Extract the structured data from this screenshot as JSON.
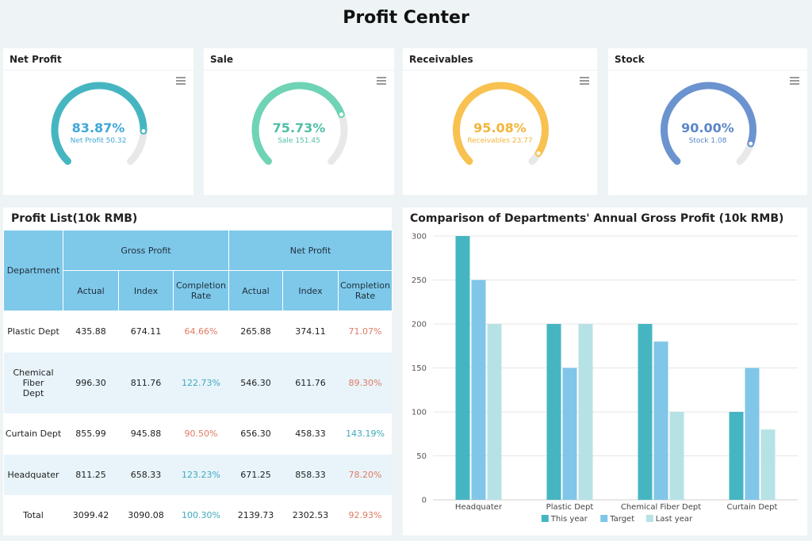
{
  "page": {
    "title": "Profit Center"
  },
  "gauges": [
    {
      "title": "Net Profit",
      "percent": 83.87,
      "percent_text": "83.87%",
      "subtitle": "Net Profit 50.32",
      "color": "#45b6c1"
    },
    {
      "title": "Sale",
      "percent": 75.73,
      "percent_text": "75.73%",
      "subtitle": "Sale 151.45",
      "color": "#6fd3b5"
    },
    {
      "title": "Receivables",
      "percent": 95.08,
      "percent_text": "95.08%",
      "subtitle": "Receivables 23.77",
      "color": "#f8c150"
    },
    {
      "title": "Stock",
      "percent": 90.0,
      "percent_text": "90.00%",
      "subtitle": "Stock 1.08",
      "color": "#6b93cf"
    }
  ],
  "gauge_track_color": "#e8e8e8",
  "profit_list": {
    "title": "Profit List(10k RMB)",
    "headers": {
      "department": "Department",
      "gross_profit": "Gross Profit",
      "net_profit": "Net Profit",
      "actual": "Actual",
      "index": "Index",
      "completion_rate": "Completion Rate"
    },
    "rows": [
      {
        "department": "Plastic Dept",
        "gp_actual": "435.88",
        "gp_index": "674.11",
        "gp_rate": "64.66%",
        "np_actual": "265.88",
        "np_index": "374.11",
        "np_rate": "71.07%"
      },
      {
        "department": "Chemical Fiber Dept",
        "gp_actual": "996.30",
        "gp_index": "811.76",
        "gp_rate": "122.73%",
        "np_actual": "546.30",
        "np_index": "611.76",
        "np_rate": "89.30%"
      },
      {
        "department": "Curtain Dept",
        "gp_actual": "855.99",
        "gp_index": "945.88",
        "gp_rate": "90.50%",
        "np_actual": "656.30",
        "np_index": "458.33",
        "np_rate": "143.19%"
      },
      {
        "department": "Headquater",
        "gp_actual": "811.25",
        "gp_index": "658.33",
        "gp_rate": "123.23%",
        "np_actual": "671.25",
        "np_index": "858.33",
        "np_rate": "78.20%"
      },
      {
        "department": "Total",
        "gp_actual": "3099.42",
        "gp_index": "3090.08",
        "gp_rate": "100.30%",
        "np_actual": "2139.73",
        "np_index": "2302.53",
        "np_rate": "92.93%"
      }
    ]
  },
  "chart_data": {
    "type": "bar",
    "title": "Comparison of Departments' Annual Gross Profit (10k RMB)",
    "categories": [
      "Headquater",
      "Plastic Dept",
      "Chemical Fiber Dept",
      "Curtain Dept"
    ],
    "series": [
      {
        "name": "This year",
        "values": [
          300,
          200,
          200,
          100
        ],
        "color": "#45b6c1"
      },
      {
        "name": "Target",
        "values": [
          250,
          150,
          180,
          150
        ],
        "color": "#80c6e8"
      },
      {
        "name": "Last year",
        "values": [
          200,
          200,
          100,
          80
        ],
        "color": "#b6e2e6"
      }
    ],
    "ylim": [
      0,
      300
    ],
    "yticks": [
      0,
      50,
      100,
      150,
      200,
      250,
      300
    ],
    "grid": true,
    "legend": "bottom",
    "xlabel": "",
    "ylabel": ""
  }
}
